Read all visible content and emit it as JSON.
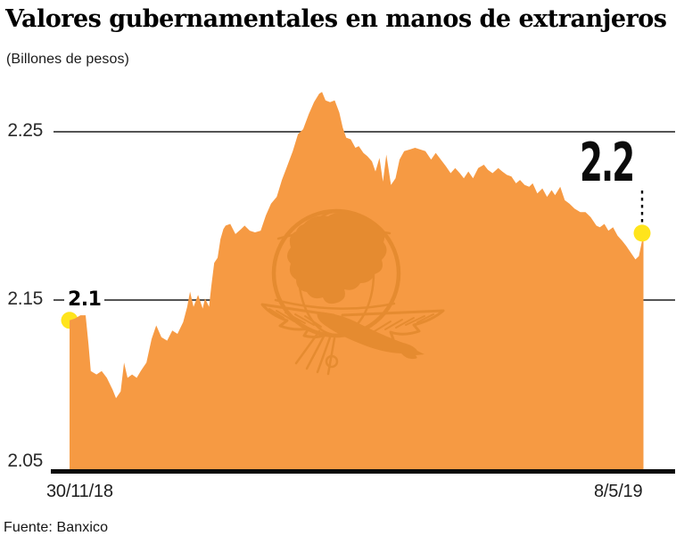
{
  "header": {
    "title": "Valores gubernamentales en manos de extranjeros",
    "subtitle": "(Billones de pesos)"
  },
  "footer": {
    "source": "Fuente: Banxico"
  },
  "watermark_icon": "eagle-over-globe",
  "chart_data": {
    "type": "area",
    "title": "Valores gubernamentales en manos de extranjeros",
    "subtitle": "(Billones de pesos)",
    "unit": "billones de pesos",
    "source": "Fuente: Banxico",
    "grid": "horizontal",
    "legend": "none",
    "x_axis": {
      "start_label": "30/11/18",
      "end_label": "8/5/19"
    },
    "y_axis": {
      "ticks": [
        "2.25",
        "2.15",
        "2.05"
      ],
      "range": [
        2.05,
        2.28
      ]
    },
    "annotations": {
      "start": {
        "label": "2.1",
        "value": 2.138,
        "date": "30/11/18"
      },
      "end": {
        "label": "2.2",
        "value": 2.189,
        "date": "8/5/19"
      }
    },
    "colors": {
      "area": "#F69A43",
      "marker": "#FFE41C",
      "watermark": "#D67D1E",
      "gridline": "#3C3C3C",
      "baseline": "#0A0A0A",
      "text": "#000000"
    },
    "series": [
      {
        "name": "Valores gubernamentales en manos de extranjeros",
        "points": [
          [
            0.0,
            2.138
          ],
          [
            0.009,
            2.139
          ],
          [
            0.019,
            2.141
          ],
          [
            0.028,
            2.141
          ],
          [
            0.033,
            2.124
          ],
          [
            0.037,
            2.108
          ],
          [
            0.047,
            2.106
          ],
          [
            0.056,
            2.108
          ],
          [
            0.065,
            2.104
          ],
          [
            0.075,
            2.097
          ],
          [
            0.081,
            2.092
          ],
          [
            0.089,
            2.096
          ],
          [
            0.095,
            2.113
          ],
          [
            0.101,
            2.104
          ],
          [
            0.109,
            2.106
          ],
          [
            0.117,
            2.104
          ],
          [
            0.124,
            2.108
          ],
          [
            0.134,
            2.113
          ],
          [
            0.143,
            2.127
          ],
          [
            0.151,
            2.135
          ],
          [
            0.16,
            2.128
          ],
          [
            0.17,
            2.126
          ],
          [
            0.179,
            2.132
          ],
          [
            0.188,
            2.13
          ],
          [
            0.198,
            2.137
          ],
          [
            0.205,
            2.146
          ],
          [
            0.21,
            2.155
          ],
          [
            0.216,
            2.146
          ],
          [
            0.224,
            2.153
          ],
          [
            0.232,
            2.145
          ],
          [
            0.236,
            2.151
          ],
          [
            0.243,
            2.146
          ],
          [
            0.247,
            2.158
          ],
          [
            0.252,
            2.172
          ],
          [
            0.258,
            2.175
          ],
          [
            0.263,
            2.186
          ],
          [
            0.268,
            2.192
          ],
          [
            0.272,
            2.194
          ],
          [
            0.28,
            2.195
          ],
          [
            0.289,
            2.189
          ],
          [
            0.299,
            2.192
          ],
          [
            0.305,
            2.194
          ],
          [
            0.314,
            2.191
          ],
          [
            0.323,
            2.19
          ],
          [
            0.333,
            2.191
          ],
          [
            0.342,
            2.2
          ],
          [
            0.351,
            2.207
          ],
          [
            0.361,
            2.211
          ],
          [
            0.37,
            2.221
          ],
          [
            0.379,
            2.229
          ],
          [
            0.389,
            2.238
          ],
          [
            0.398,
            2.248
          ],
          [
            0.407,
            2.251
          ],
          [
            0.417,
            2.26
          ],
          [
            0.426,
            2.267
          ],
          [
            0.435,
            2.272
          ],
          [
            0.44,
            2.273
          ],
          [
            0.446,
            2.268
          ],
          [
            0.454,
            2.267
          ],
          [
            0.462,
            2.268
          ],
          [
            0.47,
            2.261
          ],
          [
            0.476,
            2.252
          ],
          [
            0.482,
            2.246
          ],
          [
            0.49,
            2.245
          ],
          [
            0.498,
            2.24
          ],
          [
            0.504,
            2.241
          ],
          [
            0.512,
            2.237
          ],
          [
            0.519,
            2.235
          ],
          [
            0.527,
            2.232
          ],
          [
            0.533,
            2.226
          ],
          [
            0.54,
            2.234
          ],
          [
            0.546,
            2.22
          ],
          [
            0.552,
            2.236
          ],
          [
            0.56,
            2.218
          ],
          [
            0.568,
            2.222
          ],
          [
            0.575,
            2.233
          ],
          [
            0.583,
            2.238
          ],
          [
            0.593,
            2.239
          ],
          [
            0.602,
            2.24
          ],
          [
            0.611,
            2.239
          ],
          [
            0.62,
            2.238
          ],
          [
            0.63,
            2.233
          ],
          [
            0.638,
            2.237
          ],
          [
            0.647,
            2.233
          ],
          [
            0.656,
            2.229
          ],
          [
            0.664,
            2.225
          ],
          [
            0.672,
            2.228
          ],
          [
            0.68,
            2.225
          ],
          [
            0.687,
            2.222
          ],
          [
            0.695,
            2.226
          ],
          [
            0.703,
            2.222
          ],
          [
            0.712,
            2.228
          ],
          [
            0.722,
            2.23
          ],
          [
            0.729,
            2.227
          ],
          [
            0.737,
            2.225
          ],
          [
            0.747,
            2.228
          ],
          [
            0.754,
            2.226
          ],
          [
            0.762,
            2.224
          ],
          [
            0.77,
            2.223
          ],
          [
            0.778,
            2.219
          ],
          [
            0.785,
            2.221
          ],
          [
            0.793,
            2.218
          ],
          [
            0.801,
            2.217
          ],
          [
            0.807,
            2.219
          ],
          [
            0.815,
            2.213
          ],
          [
            0.824,
            2.216
          ],
          [
            0.832,
            2.211
          ],
          [
            0.84,
            2.215
          ],
          [
            0.846,
            2.212
          ],
          [
            0.855,
            2.217
          ],
          [
            0.863,
            2.209
          ],
          [
            0.871,
            2.207
          ],
          [
            0.88,
            2.204
          ],
          [
            0.89,
            2.202
          ],
          [
            0.899,
            2.202
          ],
          [
            0.908,
            2.199
          ],
          [
            0.918,
            2.194
          ],
          [
            0.924,
            2.193
          ],
          [
            0.932,
            2.195
          ],
          [
            0.939,
            2.191
          ],
          [
            0.947,
            2.193
          ],
          [
            0.955,
            2.188
          ],
          [
            0.963,
            2.185
          ],
          [
            0.97,
            2.182
          ],
          [
            0.978,
            2.178
          ],
          [
            0.986,
            2.174
          ],
          [
            0.992,
            2.176
          ],
          [
            1.0,
            2.189
          ]
        ]
      }
    ]
  }
}
